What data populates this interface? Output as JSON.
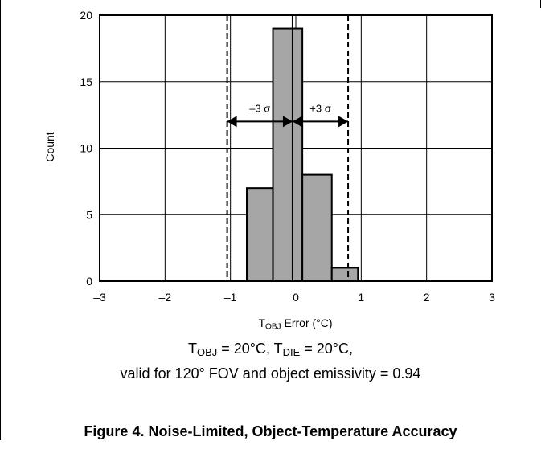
{
  "chart_data": {
    "type": "bar",
    "subtype": "histogram",
    "bins": [
      {
        "x0": -0.75,
        "x1": -0.35,
        "count": 7
      },
      {
        "x0": -0.35,
        "x1": 0.1,
        "count": 19
      },
      {
        "x0": 0.1,
        "x1": 0.55,
        "count": 8
      },
      {
        "x0": 0.55,
        "x1": 0.95,
        "count": 1
      }
    ],
    "xlim": [
      -3,
      3
    ],
    "ylim": [
      0,
      20
    ],
    "x_ticks": [
      "–3",
      "–2",
      "–1",
      "0",
      "1",
      "2",
      "3"
    ],
    "y_ticks": [
      "0",
      "5",
      "10",
      "15",
      "20"
    ],
    "ylabel": "Count",
    "xlabel": {
      "main": "T",
      "sub": "OBJ",
      "rest": " Error (°C)"
    },
    "grid": true,
    "bar_color": "#a6a6a6",
    "reference_lines": {
      "mean": -0.05,
      "minus_3_sigma": -1.05,
      "plus_3_sigma": 0.8
    },
    "annotations": {
      "minus_label": "–3 σ",
      "plus_label": "+3 σ"
    }
  },
  "conditions": {
    "t": "T",
    "obj_sub": "OBJ",
    "obj_rest": " = 20°C, ",
    "die_sub": "DIE",
    "die_rest": " = 20°C,",
    "line2": "valid for 120° FOV and object emissivity = 0.94"
  },
  "caption": "Figure 4. Noise-Limited, Object-Temperature Accuracy"
}
